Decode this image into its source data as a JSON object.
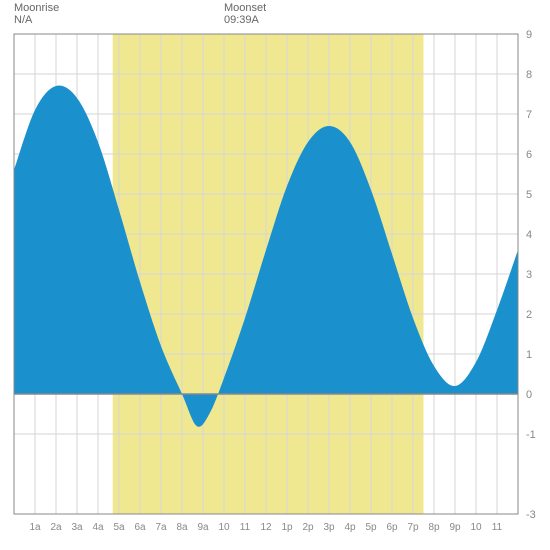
{
  "moonrise": {
    "label": "Moonrise",
    "value": "N/A",
    "labelLeftPx": 14
  },
  "moonset": {
    "label": "Moonset",
    "value": "09:39A",
    "labelLeftPx": 224
  },
  "chart": {
    "type": "area",
    "plot": {
      "leftPx": 14,
      "topPx": 34,
      "widthPx": 504,
      "heightPx": 480
    },
    "yAxis": {
      "min": -3,
      "max": 9,
      "zero": 0,
      "tickStep": 1,
      "ticks": [
        -3,
        -1,
        0,
        1,
        2,
        3,
        4,
        5,
        6,
        7,
        8,
        9
      ],
      "tickFontSize": 11,
      "tickColor": "#888888",
      "side": "right"
    },
    "xAxis": {
      "hoursCount": 24,
      "labels": [
        "1a",
        "2a",
        "3a",
        "4a",
        "5a",
        "6a",
        "7a",
        "8a",
        "9a",
        "10",
        "11",
        "12",
        "1p",
        "2p",
        "3p",
        "4p",
        "5p",
        "6p",
        "7p",
        "8p",
        "9p",
        "10",
        "11"
      ],
      "tickFontSize": 10,
      "tickColor": "#888888"
    },
    "daylight": {
      "startHour": 4.7,
      "endHour": 19.5,
      "fill": "#f0e891"
    },
    "colors": {
      "background": "#ffffff",
      "gridLine": "#d6d6d6",
      "axisLine": "#888888",
      "border": "#888888",
      "tideFill": "#1a91cc",
      "tideFillLight": "#1a91cc"
    },
    "tide": {
      "points": [
        [
          0.0,
          5.6
        ],
        [
          1.0,
          7.1
        ],
        [
          2.0,
          7.7
        ],
        [
          3.0,
          7.4
        ],
        [
          4.0,
          6.3
        ],
        [
          5.0,
          4.6
        ],
        [
          6.0,
          2.8
        ],
        [
          7.0,
          1.2
        ],
        [
          8.0,
          0.0
        ],
        [
          8.7,
          -0.8
        ],
        [
          9.3,
          -0.5
        ],
        [
          10.0,
          0.4
        ],
        [
          11.0,
          1.9
        ],
        [
          12.0,
          3.6
        ],
        [
          13.0,
          5.2
        ],
        [
          14.0,
          6.3
        ],
        [
          15.0,
          6.7
        ],
        [
          16.0,
          6.3
        ],
        [
          17.0,
          5.1
        ],
        [
          18.0,
          3.5
        ],
        [
          19.0,
          1.9
        ],
        [
          20.0,
          0.7
        ],
        [
          21.0,
          0.2
        ],
        [
          22.0,
          0.8
        ],
        [
          23.0,
          2.1
        ],
        [
          24.0,
          3.6
        ]
      ]
    }
  }
}
